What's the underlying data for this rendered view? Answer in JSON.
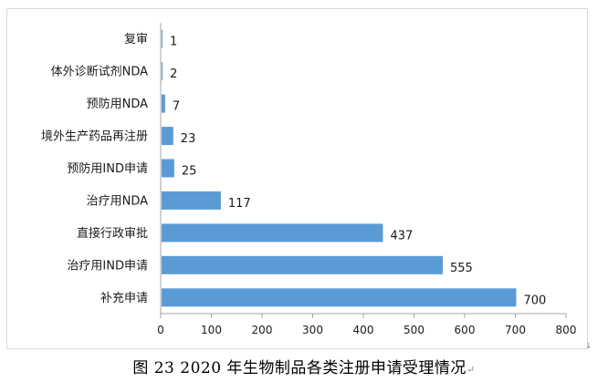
{
  "chart_data": {
    "type": "bar",
    "orientation": "horizontal",
    "categories": [
      "复审",
      "体外诊断试剂NDA",
      "预防用NDA",
      "境外生产药品再注册",
      "预防用IND申请",
      "治疗用NDA",
      "直接行政审批",
      "治疗用IND申请",
      "补充申请"
    ],
    "values": [
      1,
      2,
      7,
      23,
      25,
      117,
      437,
      555,
      700
    ],
    "xlim": [
      0,
      800
    ],
    "xticks": [
      0,
      100,
      200,
      300,
      400,
      500,
      600,
      700,
      800
    ],
    "grid": false,
    "legend": "none",
    "bar_color": "#5b9bd5"
  },
  "caption": "图 23    2020 年生物制品各类注册申请受理情况",
  "marks": {
    "paragraph": "↵",
    "corner_arrow": "↓"
  }
}
